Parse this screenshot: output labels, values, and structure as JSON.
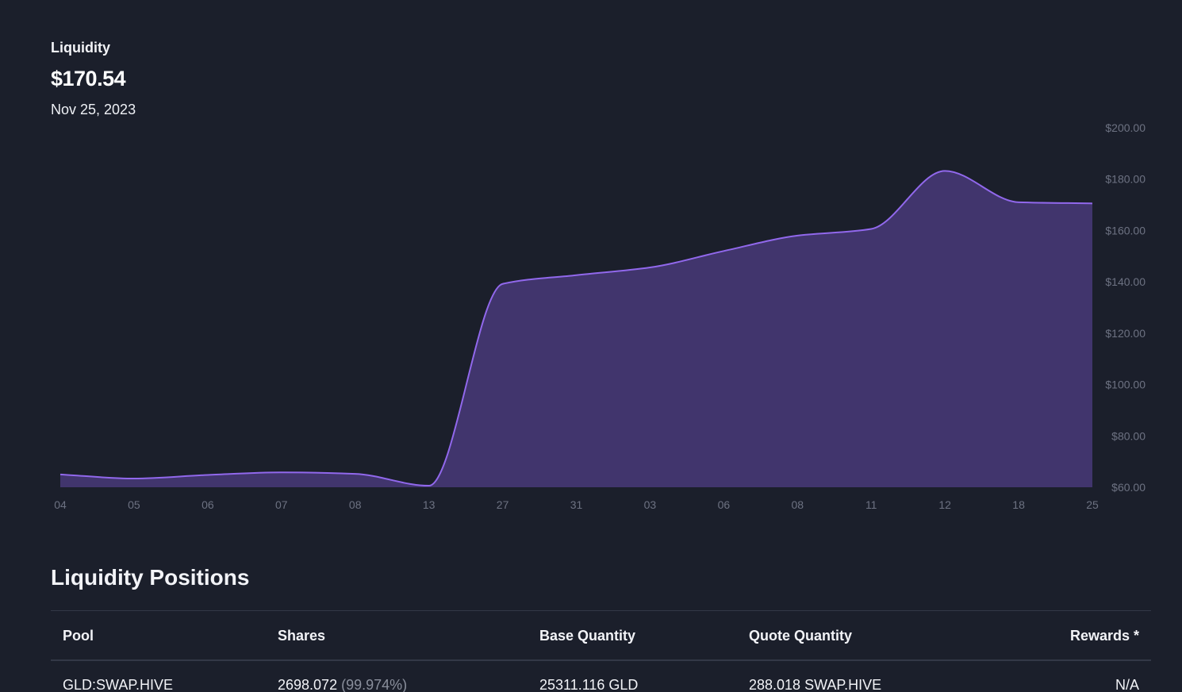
{
  "summary": {
    "label": "Liquidity",
    "value": "$170.54",
    "date": "Nov 25, 2023"
  },
  "colors": {
    "line": "#9168ec",
    "area": "#41356d",
    "background": "#1b1f2b",
    "tick": "#6d7282"
  },
  "chart_data": {
    "type": "area",
    "title": "Liquidity",
    "xlabel": "",
    "ylabel": "",
    "categories": [
      "04",
      "05",
      "06",
      "07",
      "08",
      "13",
      "27",
      "31",
      "03",
      "06",
      "08",
      "11",
      "12",
      "18",
      "25"
    ],
    "values": [
      65.0,
      63.4,
      64.8,
      65.8,
      65.2,
      60.6,
      139.2,
      142.6,
      145.6,
      152.0,
      158.0,
      160.6,
      183.2,
      171.0,
      170.54
    ],
    "y_ticks": [
      "$200.00",
      "$180.00",
      "$160.00",
      "$140.00",
      "$120.00",
      "$100.00",
      "$80.00",
      "$60.00"
    ],
    "ylim": [
      60,
      200
    ],
    "grid": false,
    "legend": "none"
  },
  "positions": {
    "title": "Liquidity Positions",
    "columns": [
      "Pool",
      "Shares",
      "Base Quantity",
      "Quote Quantity",
      "Rewards *"
    ],
    "rows": [
      {
        "pool": "GLD:SWAP.HIVE",
        "shares": "2698.072",
        "shares_pct": "(99.974%)",
        "base": "25311.116 GLD",
        "quote": "288.018 SWAP.HIVE",
        "rewards": "N/A"
      }
    ]
  }
}
